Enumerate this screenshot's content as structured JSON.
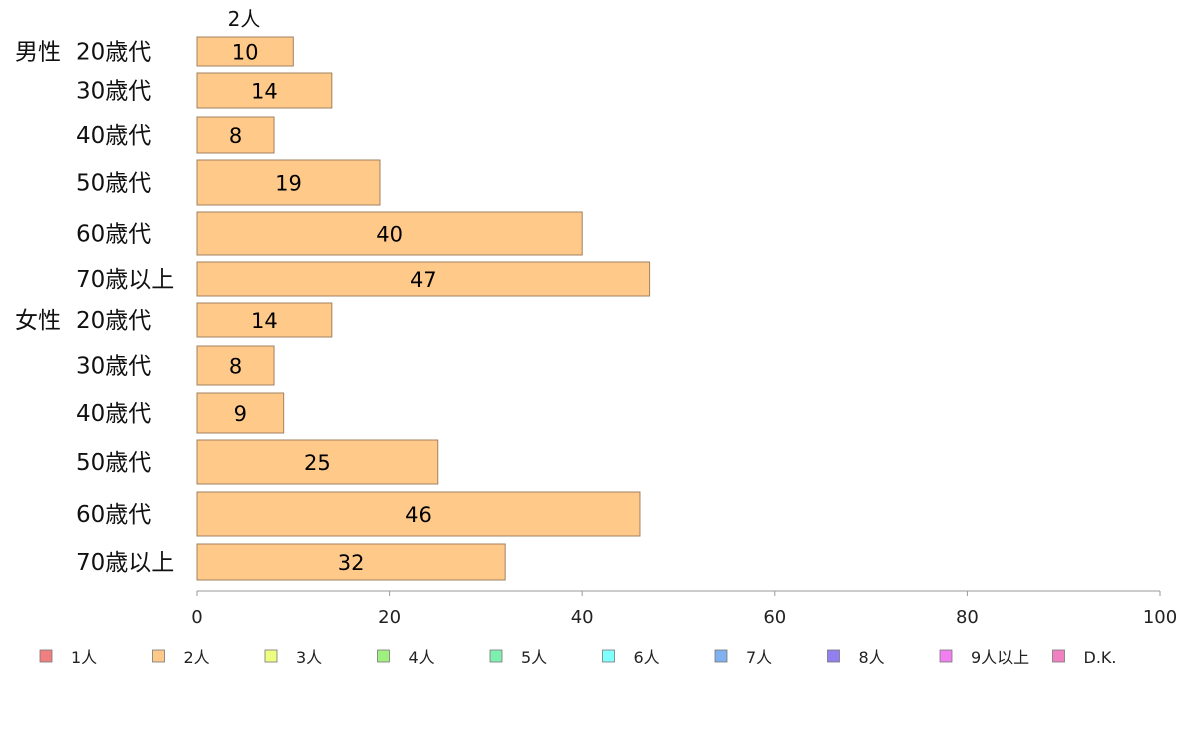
{
  "chart_data": {
    "type": "bar",
    "orientation": "horizontal",
    "stacked": true,
    "series_header": "2人",
    "groups": [
      {
        "label": "男性",
        "categories": [
          "20歳代",
          "30歳代",
          "40歳代",
          "50歳代",
          "60歳代",
          "70歳以上"
        ]
      },
      {
        "label": "女性",
        "categories": [
          "20歳代",
          "30歳代",
          "40歳代",
          "50歳代",
          "60歳代",
          "70歳以上"
        ]
      }
    ],
    "series": [
      {
        "name": "2人",
        "color": "#ffc98a",
        "values": [
          10,
          14,
          8,
          19,
          40,
          47,
          14,
          8,
          9,
          25,
          46,
          32
        ]
      }
    ],
    "xlim": [
      0,
      100
    ],
    "xticks": [
      0,
      20,
      40,
      60,
      80,
      100
    ],
    "grid": false,
    "legend_position": "bottom",
    "legend": [
      {
        "label": "1人",
        "color": "#f08080"
      },
      {
        "label": "2人",
        "color": "#ffc98a"
      },
      {
        "label": "3人",
        "color": "#eeff80"
      },
      {
        "label": "4人",
        "color": "#a0f080"
      },
      {
        "label": "5人",
        "color": "#80f0b0"
      },
      {
        "label": "6人",
        "color": "#80ffff"
      },
      {
        "label": "7人",
        "color": "#80b0f0"
      },
      {
        "label": "8人",
        "color": "#9080f0"
      },
      {
        "label": "9人以上",
        "color": "#f080f0"
      },
      {
        "label": "D.K.",
        "color": "#f080c0"
      }
    ]
  }
}
